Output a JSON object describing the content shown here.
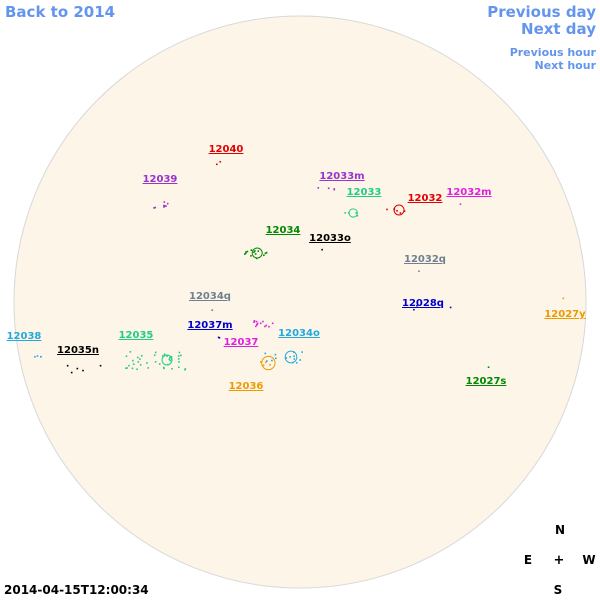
{
  "nav": {
    "back": "Back to 2014",
    "previous_day": "Previous day",
    "next_day": "Next day",
    "previous_hour": "Previous hour",
    "next_hour": "Next hour"
  },
  "timestamp": "2014-04-15T12:00:34",
  "compass": {
    "north": "N",
    "east": "E",
    "center": "+",
    "west": "W",
    "south": "S"
  },
  "regions": [
    {
      "label": "12040",
      "color": "#e00000"
    },
    {
      "label": "12039",
      "color": "#9933cc"
    },
    {
      "label": "12033m",
      "color": "#9933cc"
    },
    {
      "label": "12033",
      "color": "#22cc88"
    },
    {
      "label": "12032",
      "color": "#e00000"
    },
    {
      "label": "12032m",
      "color": "#e020e0"
    },
    {
      "label": "12034",
      "color": "#008800"
    },
    {
      "label": "12033o",
      "color": "#000000"
    },
    {
      "label": "12032q",
      "color": "#708090"
    },
    {
      "label": "12034q",
      "color": "#708090"
    },
    {
      "label": "12028q",
      "color": "#0000cc"
    },
    {
      "label": "12027y",
      "color": "#ee9900"
    },
    {
      "label": "12038",
      "color": "#22aadd"
    },
    {
      "label": "12035",
      "color": "#22cc88"
    },
    {
      "label": "12037m",
      "color": "#0000cc"
    },
    {
      "label": "12034o",
      "color": "#22aadd"
    },
    {
      "label": "12037",
      "color": "#e020e0"
    },
    {
      "label": "12035n",
      "color": "#000000"
    },
    {
      "label": "12036",
      "color": "#ee9900"
    },
    {
      "label": "12027s",
      "color": "#008800"
    }
  ]
}
